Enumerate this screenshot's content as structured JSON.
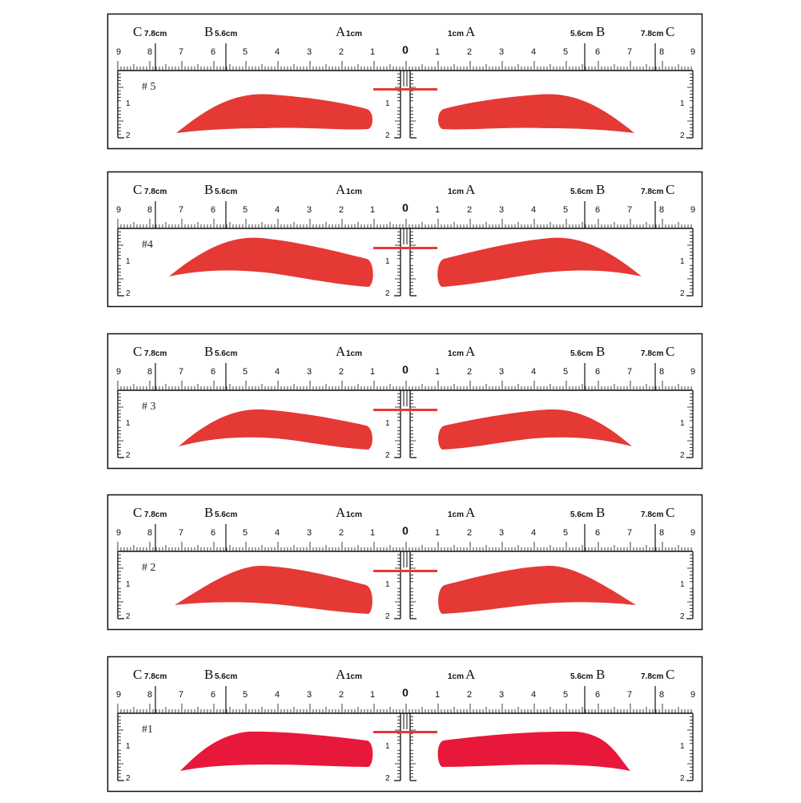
{
  "colors": {
    "brow_red": "#e53935",
    "brow_red_alt": "#e8183a",
    "line": "#111111"
  },
  "scale": {
    "left_c_letter": "C",
    "left_c_measure": "7.8cm",
    "left_b_letter": "B",
    "left_b_measure": "5.6cm",
    "left_a_letter": "A",
    "left_a_measure": "1cm",
    "right_a_measure": "1cm",
    "right_a_letter": "A",
    "right_b_measure": "5.6cm",
    "right_b_letter": "B",
    "right_c_measure": "7.8cm",
    "right_c_letter": "C",
    "left_numbers": [
      "9",
      "8",
      "7",
      "6",
      "5",
      "4",
      "3",
      "2",
      "1"
    ],
    "center_number": "0",
    "right_numbers": [
      "1",
      "2",
      "3",
      "4",
      "5",
      "6",
      "7",
      "8",
      "9"
    ],
    "vertical_numbers": [
      "1",
      "2"
    ]
  },
  "stencils": [
    {
      "label": "# 5",
      "shape": "thin"
    },
    {
      "label": "#4",
      "shape": "arched"
    },
    {
      "label": "# 3",
      "shape": "soft"
    },
    {
      "label": "# 2",
      "shape": "angled"
    },
    {
      "label": "#1",
      "shape": "thick"
    }
  ]
}
